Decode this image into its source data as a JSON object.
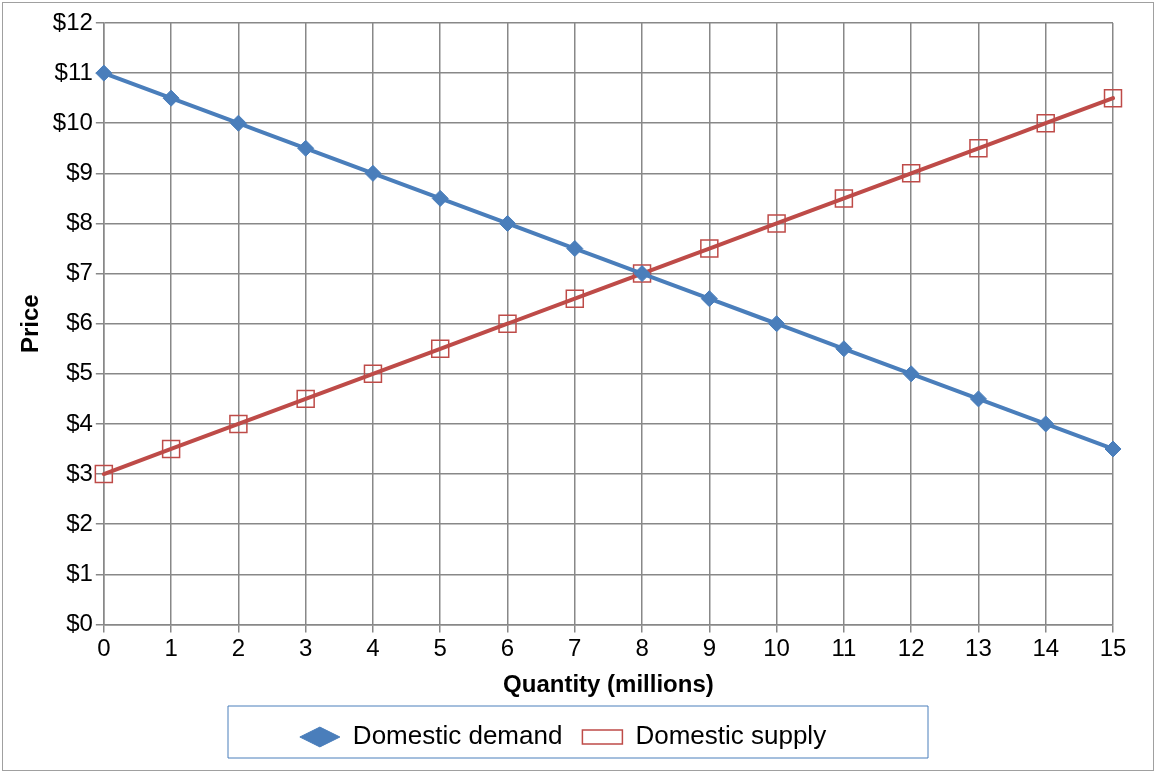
{
  "chart_data": {
    "type": "line",
    "xlabel": "Quantity (millions)",
    "ylabel": "Price",
    "x": [
      0,
      1,
      2,
      3,
      4,
      5,
      6,
      7,
      8,
      9,
      10,
      11,
      12,
      13,
      14,
      15
    ],
    "series": [
      {
        "name": "Domestic demand",
        "color": "#4a7ebb",
        "marker": "diamond",
        "values": [
          11,
          10.5,
          10,
          9.5,
          9,
          8.5,
          8,
          7.5,
          7,
          6.5,
          6,
          5.5,
          5,
          4.5,
          4,
          3.5
        ]
      },
      {
        "name": "Domestic supply",
        "color": "#be4b48",
        "marker": "square",
        "values": [
          3,
          3.5,
          4,
          4.5,
          5,
          5.5,
          6,
          6.5,
          7,
          7.5,
          8,
          8.5,
          9,
          9.5,
          10,
          10.5
        ]
      }
    ],
    "xlim": [
      0,
      15
    ],
    "xticks": [
      0,
      1,
      2,
      3,
      4,
      5,
      6,
      7,
      8,
      9,
      10,
      11,
      12,
      13,
      14,
      15
    ],
    "ylim": [
      0,
      12
    ],
    "yticks": [
      {
        "value": 0,
        "label": "$0"
      },
      {
        "value": 1,
        "label": "$1"
      },
      {
        "value": 2,
        "label": "$2"
      },
      {
        "value": 3,
        "label": "$3"
      },
      {
        "value": 4,
        "label": "$4"
      },
      {
        "value": 5,
        "label": "$5"
      },
      {
        "value": 6,
        "label": "$6"
      },
      {
        "value": 7,
        "label": "$7"
      },
      {
        "value": 8,
        "label": "$8"
      },
      {
        "value": 9,
        "label": "$9"
      },
      {
        "value": 10,
        "label": "$10"
      },
      {
        "value": 11,
        "label": "$11"
      },
      {
        "value": 12,
        "label": "$12"
      }
    ],
    "grid": true,
    "legend": "bottom"
  }
}
